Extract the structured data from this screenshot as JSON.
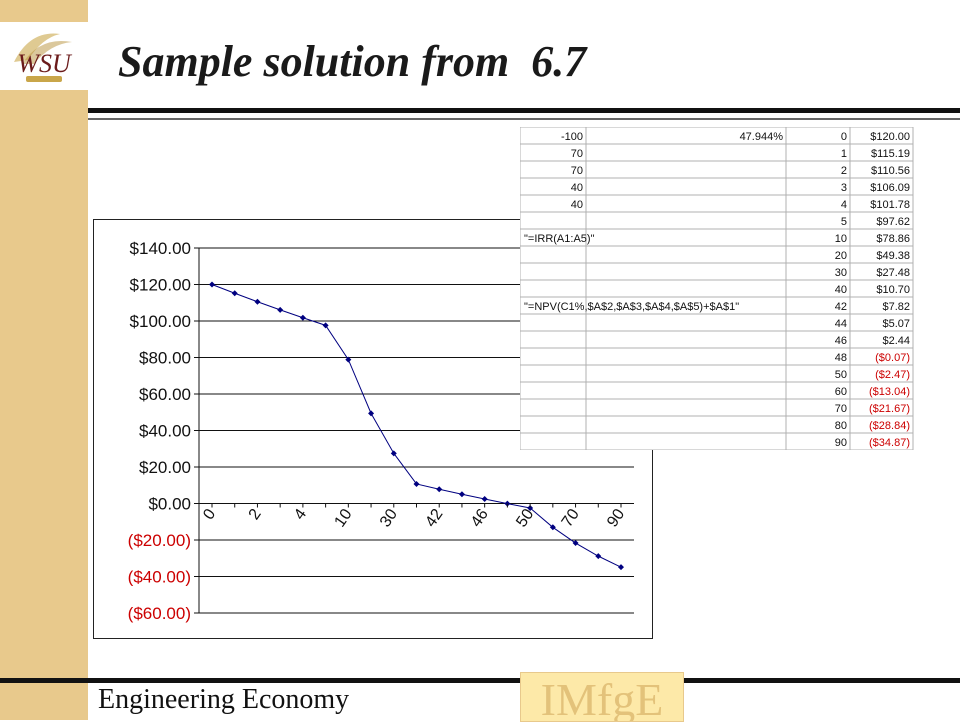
{
  "title": "Sample solution from  6.7",
  "footer": {
    "course": "Engineering Economy",
    "program_logo": "IMfgE",
    "university_logo": "WSU"
  },
  "colors": {
    "band": "#e8c98c",
    "series": "#000080",
    "negative": "#cc0000",
    "grid": "#c0c0c0"
  },
  "spreadsheet": {
    "rows": [
      {
        "a": "-100",
        "b": "",
        "c": "47.944%",
        "d": "0",
        "e": "$120.00"
      },
      {
        "a": "70",
        "b": "",
        "c": "",
        "d": "1",
        "e": "$115.19"
      },
      {
        "a": "70",
        "b": "",
        "c": "",
        "d": "2",
        "e": "$110.56"
      },
      {
        "a": "40",
        "b": "",
        "c": "",
        "d": "3",
        "e": "$106.09"
      },
      {
        "a": "40",
        "b": "",
        "c": "",
        "d": "4",
        "e": "$101.78"
      },
      {
        "a": "",
        "b": "",
        "c": "",
        "d": "5",
        "e": "$97.62"
      },
      {
        "a": "",
        "b": "\"=IRR(A1:A5)\"",
        "c": "",
        "d": "10",
        "e": "$78.86"
      },
      {
        "a": "",
        "b": "",
        "c": "",
        "d": "20",
        "e": "$49.38"
      },
      {
        "a": "",
        "b": "",
        "c": "",
        "d": "30",
        "e": "$27.48"
      },
      {
        "a": "",
        "b": "",
        "c": "",
        "d": "40",
        "e": "$10.70"
      },
      {
        "a": "",
        "b": "\"=NPV(C1%,$A$2,$A$3,$A$4,$A$5)+$A$1\"",
        "c": "",
        "d": "42",
        "e": "$7.82"
      },
      {
        "a": "",
        "b": "",
        "c": "",
        "d": "44",
        "e": "$5.07"
      },
      {
        "a": "",
        "b": "",
        "c": "",
        "d": "46",
        "e": "$2.44"
      },
      {
        "a": "",
        "b": "",
        "c": "",
        "d": "48",
        "e": "($0.07)"
      },
      {
        "a": "",
        "b": "",
        "c": "",
        "d": "50",
        "e": "($2.47)"
      },
      {
        "a": "",
        "b": "",
        "c": "",
        "d": "60",
        "e": "($13.04)"
      },
      {
        "a": "",
        "b": "",
        "c": "",
        "d": "70",
        "e": "($21.67)"
      },
      {
        "a": "",
        "b": "",
        "c": "",
        "d": "80",
        "e": "($28.84)"
      },
      {
        "a": "",
        "b": "",
        "c": "",
        "d": "90",
        "e": "($34.87)"
      }
    ]
  },
  "chart_data": {
    "type": "line",
    "categories": [
      "0",
      "1",
      "2",
      "3",
      "4",
      "5",
      "10",
      "20",
      "30",
      "40",
      "42",
      "44",
      "46",
      "48",
      "50",
      "60",
      "70",
      "80",
      "90"
    ],
    "values": [
      120.0,
      115.19,
      110.56,
      106.09,
      101.78,
      97.62,
      78.86,
      49.38,
      27.48,
      10.7,
      7.82,
      5.07,
      2.44,
      -0.07,
      -2.47,
      -13.04,
      -21.67,
      -28.84,
      -34.87
    ],
    "tick_labels_shown": [
      "0",
      "2",
      "4",
      "10",
      "30",
      "42",
      "46",
      "50",
      "70",
      "90"
    ],
    "y_ticks": [
      140,
      120,
      100,
      80,
      60,
      40,
      20,
      0,
      -20,
      -40,
      -60
    ],
    "y_tick_labels": [
      "$140.00",
      "$120.00",
      "$100.00",
      "$80.00",
      "$60.00",
      "$40.00",
      "$20.00",
      "$0.00",
      "($20.00)",
      "($40.00)",
      "($60.00)"
    ],
    "ylim": [
      -60,
      140
    ],
    "grid": true,
    "legend": "none",
    "title": "",
    "xlabel": "",
    "ylabel": ""
  }
}
